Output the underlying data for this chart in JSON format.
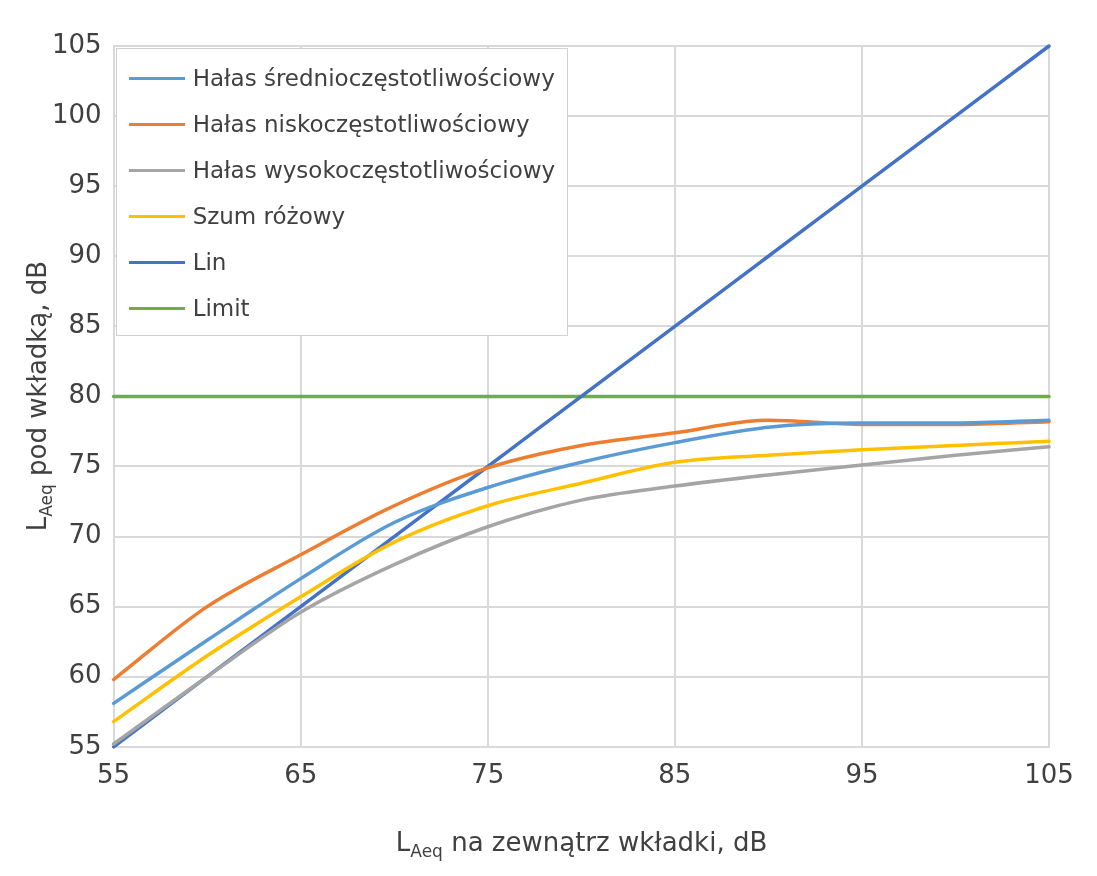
{
  "chart_data": {
    "type": "line",
    "xlabel": "L$_{Aeq}$ na zewnątrz wkładki, dB",
    "ylabel": "L$_{Aeq}$ pod wkładką, dB",
    "x": [
      55,
      60,
      65,
      70,
      75,
      80,
      85,
      90,
      95,
      100,
      105
    ],
    "series": [
      {
        "name": "Hałas średnioczęstotliwościowy",
        "color": "#5b9bd5",
        "values": [
          58.1,
          62.6,
          67.0,
          71.0,
          73.5,
          75.3,
          76.7,
          77.8,
          78.1,
          78.1,
          78.3
        ]
      },
      {
        "name": "Hałas niskoczęstotliwościowy",
        "color": "#ed7d31",
        "values": [
          59.8,
          65.0,
          68.7,
          72.2,
          74.9,
          76.5,
          77.4,
          78.3,
          78.0,
          78.0,
          78.2
        ]
      },
      {
        "name": "Hałas wysokoczęstotliwościowy",
        "color": "#a5a5a5",
        "values": [
          55.2,
          60.0,
          64.6,
          68.0,
          70.7,
          72.6,
          73.6,
          74.4,
          75.1,
          75.8,
          76.4
        ]
      },
      {
        "name": "Szum różowy",
        "color": "#ffc000",
        "values": [
          56.8,
          61.5,
          65.7,
          69.6,
          72.2,
          73.8,
          75.3,
          75.8,
          76.2,
          76.5,
          76.8
        ]
      },
      {
        "name": "Lin",
        "color": "#4472c4",
        "values": [
          55,
          60,
          65,
          70,
          75,
          80,
          85,
          90,
          95,
          100,
          105
        ]
      },
      {
        "name": "Limit",
        "color": "#70ad47",
        "values": [
          80,
          80,
          80,
          80,
          80,
          80,
          80,
          80,
          80,
          80,
          80
        ]
      }
    ],
    "xlim": [
      55,
      105
    ],
    "xticks": [
      55,
      65,
      75,
      85,
      95,
      105
    ],
    "ylim": [
      55,
      105
    ],
    "yticks": [
      55,
      60,
      65,
      70,
      75,
      80,
      85,
      90,
      95,
      100,
      105
    ],
    "grid": true,
    "legend": "top left",
    "marker": "none",
    "line_style": "solid"
  }
}
